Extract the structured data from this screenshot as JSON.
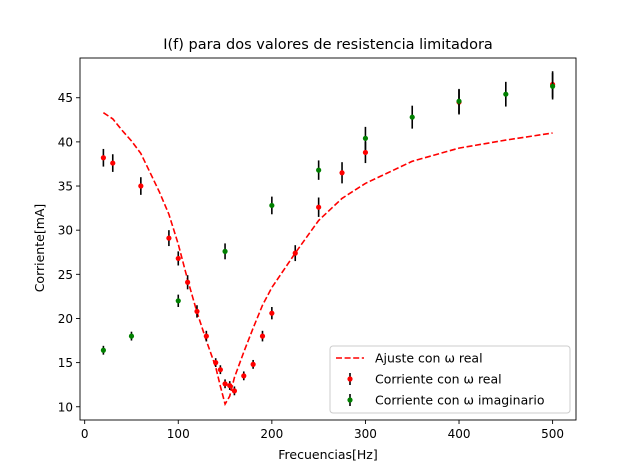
{
  "chart_data": {
    "type": "scatter",
    "title": "I(f) para dos valores de resistencia limitadora",
    "xlabel": "Frecuencias[Hz]",
    "ylabel": "Corriente[mA]",
    "xlim": [
      -5,
      525
    ],
    "ylim": [
      8.5,
      49.5
    ],
    "xticks": [
      0,
      100,
      200,
      300,
      400,
      500
    ],
    "yticks": [
      10,
      15,
      20,
      25,
      30,
      35,
      40,
      45
    ],
    "grid": false,
    "legend_position": "lower-right",
    "series": [
      {
        "name": "Ajuste con ω real",
        "kind": "line",
        "style": "dashed",
        "color": "#ff0000",
        "x": [
          20,
          30,
          40,
          50,
          60,
          70,
          80,
          90,
          100,
          110,
          120,
          130,
          140,
          145,
          150,
          155,
          160,
          170,
          180,
          190,
          200,
          225,
          250,
          275,
          300,
          350,
          400,
          450,
          500
        ],
        "y": [
          43.3,
          42.6,
          41.3,
          40.1,
          38.7,
          36.5,
          34.3,
          31.8,
          28.4,
          24.4,
          20.7,
          17.5,
          14.5,
          12.3,
          10.3,
          11.2,
          13.3,
          16.2,
          18.9,
          21.5,
          23.5,
          27.4,
          31.1,
          33.6,
          35.3,
          37.8,
          39.3,
          40.2,
          41.0
        ]
      },
      {
        "name": "Corriente con ω real",
        "kind": "errorbar",
        "color": "#ff0000",
        "points": [
          {
            "x": 20,
            "y": 38.2,
            "err": 1.0
          },
          {
            "x": 30,
            "y": 37.6,
            "err": 1.0
          },
          {
            "x": 60,
            "y": 35.0,
            "err": 1.0
          },
          {
            "x": 90,
            "y": 29.1,
            "err": 0.9
          },
          {
            "x": 100,
            "y": 26.8,
            "err": 0.8
          },
          {
            "x": 110,
            "y": 24.1,
            "err": 0.8
          },
          {
            "x": 120,
            "y": 20.8,
            "err": 0.7
          },
          {
            "x": 130,
            "y": 18.0,
            "err": 0.6
          },
          {
            "x": 140,
            "y": 15.0,
            "err": 0.5
          },
          {
            "x": 145,
            "y": 14.2,
            "err": 0.5
          },
          {
            "x": 150,
            "y": 12.6,
            "err": 0.5
          },
          {
            "x": 155,
            "y": 12.4,
            "err": 0.5
          },
          {
            "x": 160,
            "y": 11.8,
            "err": 0.5
          },
          {
            "x": 170,
            "y": 13.5,
            "err": 0.5
          },
          {
            "x": 180,
            "y": 14.8,
            "err": 0.5
          },
          {
            "x": 190,
            "y": 18.0,
            "err": 0.6
          },
          {
            "x": 200,
            "y": 20.6,
            "err": 0.7
          },
          {
            "x": 225,
            "y": 27.4,
            "err": 0.9
          },
          {
            "x": 250,
            "y": 32.6,
            "err": 1.1
          },
          {
            "x": 275,
            "y": 36.5,
            "err": 1.2
          },
          {
            "x": 300,
            "y": 38.8,
            "err": 1.2
          },
          {
            "x": 400,
            "y": 44.5,
            "err": 1.4
          },
          {
            "x": 500,
            "y": 46.5,
            "err": 1.5
          }
        ]
      },
      {
        "name": "Corriente con ω imaginario",
        "kind": "errorbar",
        "color": "#008000",
        "points": [
          {
            "x": 20,
            "y": 16.4,
            "err": 0.5
          },
          {
            "x": 50,
            "y": 18.0,
            "err": 0.5
          },
          {
            "x": 100,
            "y": 22.0,
            "err": 0.7
          },
          {
            "x": 150,
            "y": 27.6,
            "err": 0.9
          },
          {
            "x": 200,
            "y": 32.8,
            "err": 1.0
          },
          {
            "x": 250,
            "y": 36.8,
            "err": 1.1
          },
          {
            "x": 300,
            "y": 40.4,
            "err": 1.3
          },
          {
            "x": 350,
            "y": 42.8,
            "err": 1.3
          },
          {
            "x": 400,
            "y": 44.6,
            "err": 1.4
          },
          {
            "x": 450,
            "y": 45.4,
            "err": 1.4
          },
          {
            "x": 500,
            "y": 46.3,
            "err": 1.5
          }
        ]
      }
    ],
    "legend": [
      {
        "label": " Ajuste con ω real",
        "kind": "line",
        "color": "#ff0000"
      },
      {
        "label": "Corriente con ω real",
        "kind": "errorbar",
        "color": "#ff0000"
      },
      {
        "label": "Corriente con ω imaginario",
        "kind": "errorbar",
        "color": "#008000"
      }
    ]
  }
}
